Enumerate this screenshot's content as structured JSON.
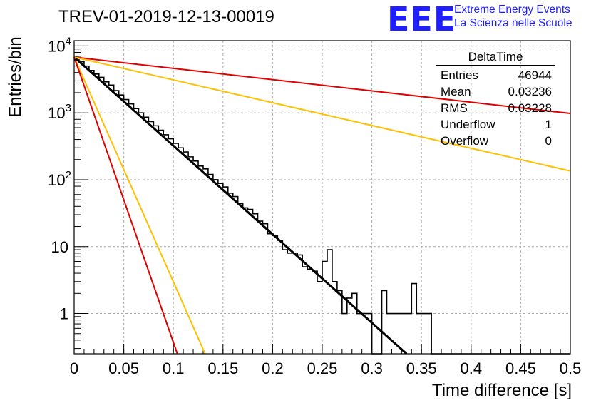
{
  "title": "TREV-01-2019-12-13-00019",
  "logo": {
    "mark": "EEE",
    "line1": "Extreme Energy Events",
    "line2": "La Scienza nelle Scuole"
  },
  "stats": {
    "name": "DeltaTime",
    "rows": [
      {
        "label": "Entries",
        "value": "46944"
      },
      {
        "label": "Mean",
        "value": "0.03236"
      },
      {
        "label": "RMS",
        "value": "0.03228"
      },
      {
        "label": "Underflow",
        "value": "1"
      },
      {
        "label": "Overflow",
        "value": "0"
      }
    ]
  },
  "chart_data": {
    "type": "line",
    "title": "TREV-01-2019-12-13-00019",
    "xlabel": "Time difference [s]",
    "ylabel": "Entries/bin",
    "xlim": [
      0,
      0.5
    ],
    "ylim": [
      0.25,
      12000
    ],
    "yscale": "log",
    "grid": true,
    "x_ticks": [
      "0",
      "0.05",
      "0.1",
      "0.15",
      "0.2",
      "0.25",
      "0.3",
      "0.35",
      "0.4",
      "0.45",
      "0.5"
    ],
    "y_ticks": [
      {
        "value": 1,
        "label": "1"
      },
      {
        "value": 10,
        "label": "10"
      },
      {
        "value": 100,
        "label": "10",
        "exp": "2"
      },
      {
        "value": 1000,
        "label": "10",
        "exp": "3"
      },
      {
        "value": 10000,
        "label": "10",
        "exp": "4"
      }
    ],
    "histogram": {
      "bin_width": 0.005,
      "values": [
        6200,
        5800,
        5000,
        4300,
        3800,
        3400,
        2900,
        2600,
        2150,
        1850,
        1580,
        1360,
        1160,
        1000,
        860,
        740,
        640,
        550,
        470,
        410,
        350,
        300,
        260,
        220,
        190,
        160,
        145,
        120,
        100,
        88,
        78,
        63,
        56,
        44,
        38,
        36,
        31,
        24,
        22,
        15.6,
        14.6,
        12.4,
        9,
        8,
        8,
        7.5,
        5,
        4.6,
        4.3,
        3,
        6,
        9,
        3,
        2.2,
        1,
        1.7,
        2,
        1,
        1,
        1,
        0.12,
        0.1,
        2.2,
        1,
        1,
        1,
        1,
        1,
        2.8,
        1,
        1,
        1,
        0,
        0,
        0,
        0,
        0,
        0,
        0,
        0,
        0,
        0,
        0,
        0,
        0,
        0,
        0,
        0,
        0,
        0,
        0,
        0,
        0,
        0,
        0,
        0,
        0,
        0,
        0,
        0
      ]
    },
    "series": [
      {
        "type": "fit",
        "color": "#000000",
        "points": [
          [
            0,
            6800
          ],
          [
            0.335,
            0.25
          ]
        ]
      },
      {
        "type": "curve",
        "color": "#e00000",
        "points": [
          [
            0,
            6800
          ],
          [
            0.5,
            980
          ]
        ]
      },
      {
        "type": "curve",
        "color": "#ffc000",
        "points": [
          [
            0,
            6800
          ],
          [
            0.5,
            135
          ]
        ]
      },
      {
        "type": "curve",
        "color": "#ffc000",
        "points": [
          [
            0,
            6800
          ],
          [
            0.132,
            0.25
          ]
        ]
      },
      {
        "type": "curve",
        "color": "#e00000",
        "points": [
          [
            0,
            6800
          ],
          [
            0.104,
            0.25
          ]
        ]
      }
    ]
  }
}
